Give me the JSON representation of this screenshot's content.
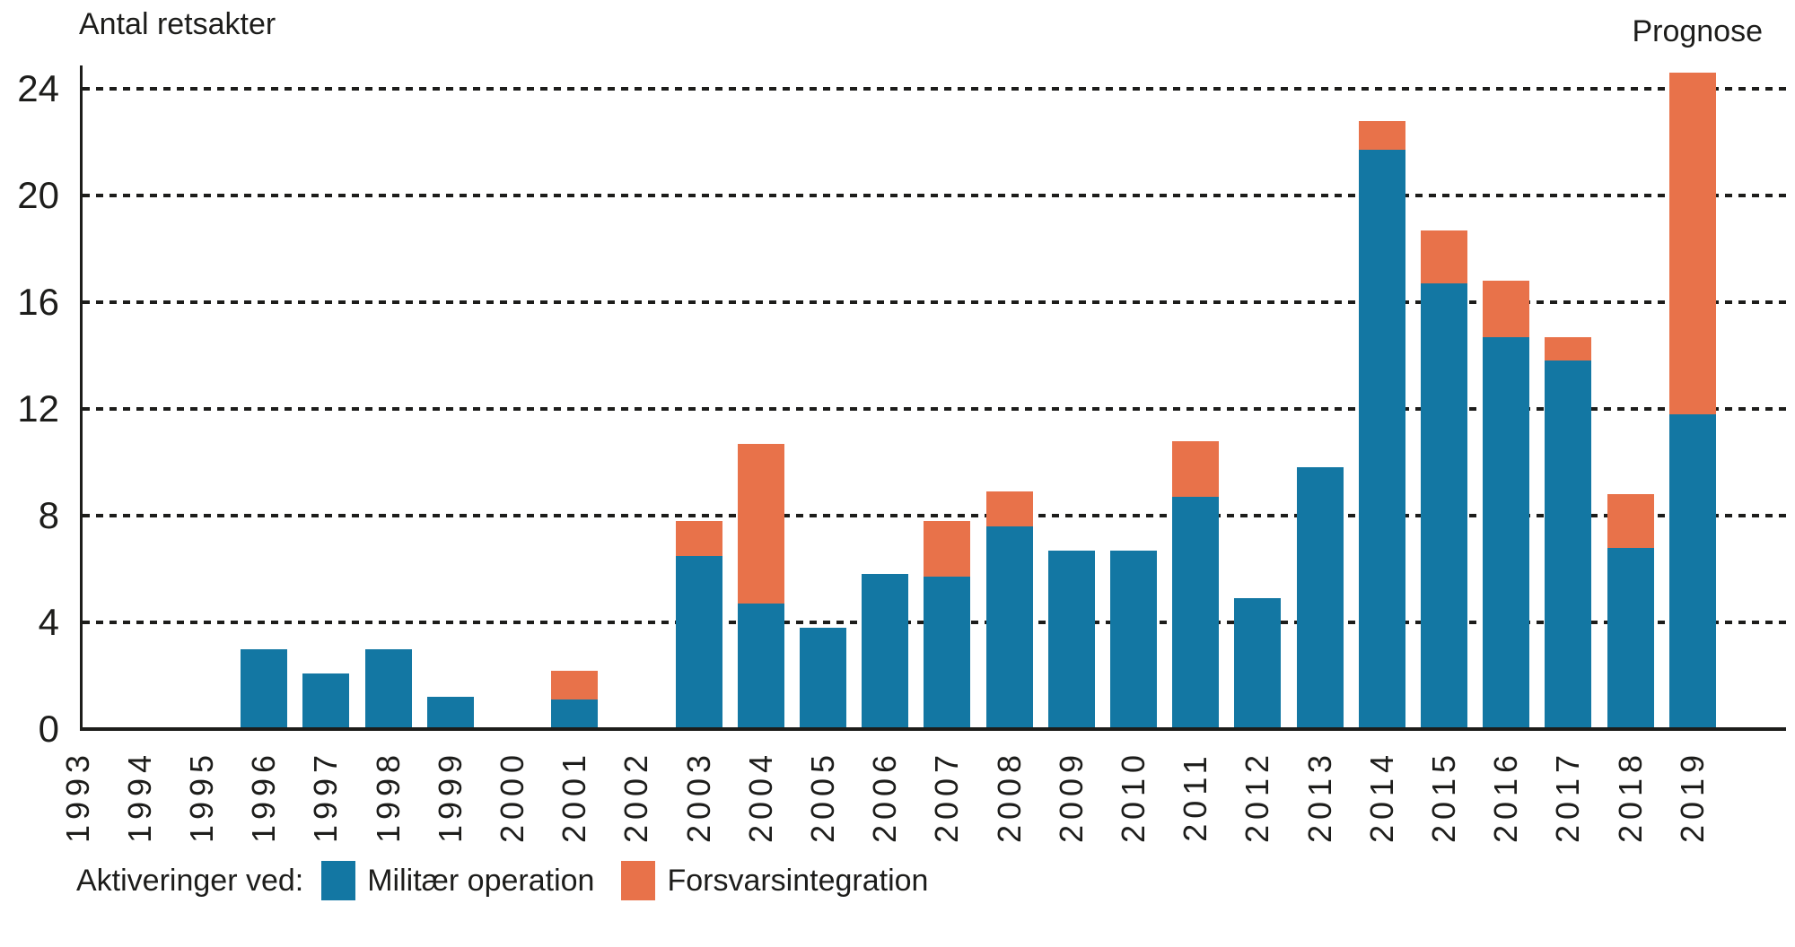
{
  "title": "Antal retsakter",
  "prognose_label": "Prognose",
  "legend": {
    "prefix": "Aktiveringer ved:",
    "items": [
      {
        "label": "Militær operation",
        "color": "#1377A3"
      },
      {
        "label": "Forsvarsintegration",
        "color": "#E8724A"
      }
    ]
  },
  "chart_data": {
    "type": "bar",
    "stacked": true,
    "title": "Antal retsakter",
    "ylabel": "Antal retsakter",
    "annotation": "Prognose (label above the 2019 forecast bar)",
    "grid": "horizontal dotted",
    "legend_position": "bottom-left",
    "yticks": [
      0,
      4,
      8,
      12,
      16,
      20,
      24
    ],
    "ylim": [
      0,
      24.8
    ],
    "categories": [
      "1993",
      "1994",
      "1995",
      "1996",
      "1997",
      "1998",
      "1999",
      "2000",
      "2001",
      "2002",
      "2003",
      "2004",
      "2005",
      "2006",
      "2007",
      "2008",
      "2009",
      "2010",
      "2011",
      "2012",
      "2013",
      "2014",
      "2015",
      "2016",
      "2017",
      "2018",
      "2019"
    ],
    "series": [
      {
        "name": "Militær operation",
        "color": "#1377A3",
        "values": [
          0,
          0,
          0,
          3,
          2.1,
          3,
          1.2,
          0,
          1.1,
          0,
          6.5,
          4.7,
          3.8,
          5.8,
          5.7,
          7.6,
          6.7,
          6.7,
          8.7,
          4.9,
          9.8,
          21.7,
          16.7,
          14.7,
          13.8,
          6.8,
          11.8
        ]
      },
      {
        "name": "Forsvarsintegration",
        "color": "#E8724A",
        "values": [
          0,
          0,
          0,
          0,
          0,
          0,
          0,
          0,
          1.1,
          0,
          1.3,
          6,
          0,
          0,
          2.1,
          1.3,
          0,
          0,
          2.1,
          0,
          0,
          1.1,
          2,
          2.1,
          0.9,
          2,
          12.8
        ]
      }
    ]
  }
}
